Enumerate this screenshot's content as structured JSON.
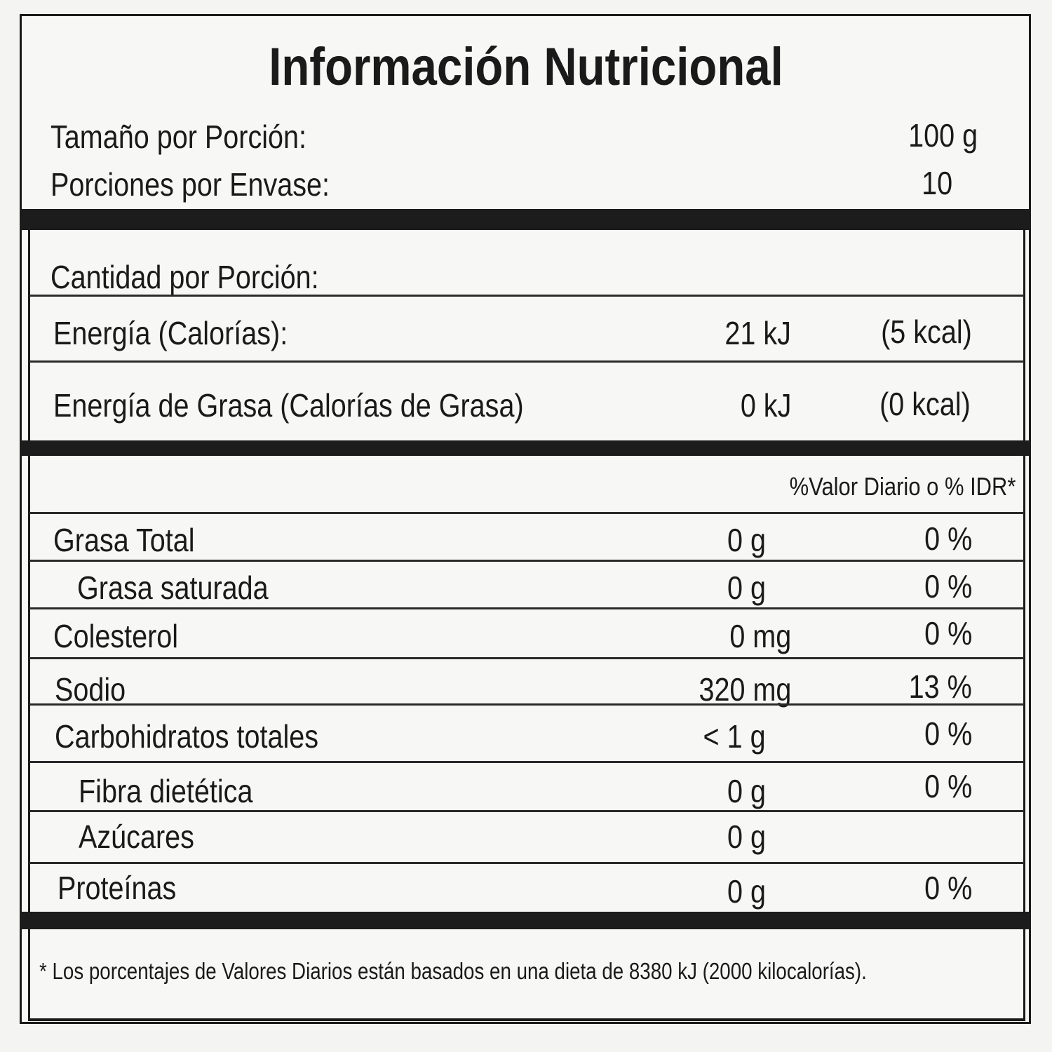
{
  "title": "Información Nutricional",
  "serving": {
    "size_label": "Tamaño por Porción:",
    "size_value": "100 g",
    "servings_label": "Porciones por Envase:",
    "servings_value": "10"
  },
  "amount_per_serving": "Cantidad por Porción:",
  "energy": [
    {
      "label": "Energía (Calorías):",
      "kj": "21 kJ",
      "kcal": "(5 kcal)"
    },
    {
      "label": "Energía de Grasa (Calorías de Grasa)",
      "kj": "0 kJ",
      "kcal": "(0 kcal)"
    }
  ],
  "dv_header": "%Valor Diario o % IDR*",
  "nutrients": [
    {
      "label": "Grasa Total",
      "amount": "0 g",
      "dv": "0 %"
    },
    {
      "label": "Grasa saturada",
      "amount": "0 g",
      "dv": "0 %"
    },
    {
      "label": "Colesterol",
      "amount": "0 mg",
      "dv": "0 %"
    },
    {
      "label": "Sodio",
      "amount": "320 mg",
      "dv": "13 %"
    },
    {
      "label": "Carbohidratos totales",
      "amount": "< 1 g",
      "dv": "0 %"
    },
    {
      "label": "Fibra dietética",
      "amount": "0 g",
      "dv": "0 %"
    },
    {
      "label": "Azúcares",
      "amount": "0 g",
      "dv": ""
    },
    {
      "label": "Proteínas",
      "amount": "0 g",
      "dv": "0 %"
    }
  ],
  "footnote": "* Los porcentajes de Valores Diarios están basados en una dieta de 8380 kJ (2000 kilocalorías)."
}
